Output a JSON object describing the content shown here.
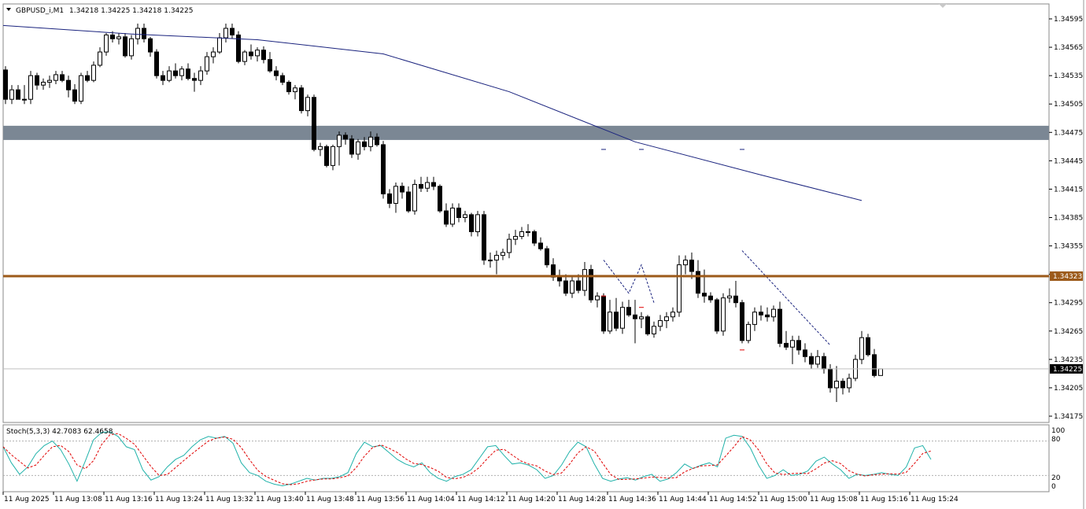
{
  "window": {
    "symbol_label": "GBPUSD_i,M1",
    "ohlc_label": "1.34218 1.34225 1.34218 1.34225"
  },
  "indicator": {
    "label": "Stoch(5,3,3) 42.7083 62.4658",
    "levels": [
      "100",
      "80",
      "20",
      "0"
    ]
  },
  "price_axis": {
    "ticks": [
      "1.34595",
      "1.34565",
      "1.34535",
      "1.34505",
      "1.34475",
      "1.34445",
      "1.34415",
      "1.34385",
      "1.34355",
      "1.34325",
      "1.34295",
      "1.34265",
      "1.34235",
      "1.34205",
      "1.34175"
    ]
  },
  "current_price_tag": "1.34225",
  "level_tag": "1.34323",
  "time_axis": {
    "labels": [
      "11 Aug 2025",
      "11 Aug 13:08",
      "11 Aug 13:16",
      "11 Aug 13:24",
      "11 Aug 13:32",
      "11 Aug 13:40",
      "11 Aug 13:48",
      "11 Aug 13:56",
      "11 Aug 14:04",
      "11 Aug 14:12",
      "11 Aug 14:20",
      "11 Aug 14:28",
      "11 Aug 14:36",
      "11 Aug 14:44",
      "11 Aug 14:52",
      "11 Aug 15:00",
      "11 Aug 15:08",
      "11 Aug 15:16",
      "11 Aug 15:24"
    ]
  },
  "colors": {
    "bullish_body": "#ffffff",
    "bearish_body": "#000000",
    "moving_average": "#1a237e",
    "zone": "#7b8794",
    "horizontal_level": "#9c5a1a",
    "stoch_main": "#20b2aa",
    "stoch_signal": "#e00000"
  },
  "chart_data": {
    "type": "candlestick",
    "symbol": "GBPUSD_i",
    "timeframe": "M1",
    "ylim": [
      1.34165,
      1.34615
    ],
    "horizontal_line": 1.34323,
    "zone": [
      1.34467,
      1.34482
    ],
    "current_price": 1.34225,
    "candles": [
      [
        1.34541,
        1.34545,
        1.34505,
        1.3451
      ],
      [
        1.3451,
        1.34525,
        1.34505,
        1.3452
      ],
      [
        1.3452,
        1.34525,
        1.3451,
        1.3451
      ],
      [
        1.3451,
        1.34525,
        1.34505,
        1.3451
      ],
      [
        1.3451,
        1.3454,
        1.34505,
        1.34535
      ],
      [
        1.34535,
        1.34538,
        1.3452,
        1.34525
      ],
      [
        1.34525,
        1.34532,
        1.3452,
        1.34528
      ],
      [
        1.34528,
        1.34535,
        1.34522,
        1.3453
      ],
      [
        1.3453,
        1.3454,
        1.34526,
        1.34536
      ],
      [
        1.34536,
        1.3454,
        1.34528,
        1.3453
      ],
      [
        1.3453,
        1.34535,
        1.34512,
        1.3452
      ],
      [
        1.3452,
        1.34526,
        1.34505,
        1.34508
      ],
      [
        1.34508,
        1.34538,
        1.34505,
        1.34535
      ],
      [
        1.34535,
        1.3454,
        1.34528,
        1.3453
      ],
      [
        1.3453,
        1.3455,
        1.34528,
        1.34546
      ],
      [
        1.34546,
        1.34565,
        1.34544,
        1.3456
      ],
      [
        1.3456,
        1.3458,
        1.34556,
        1.34578
      ],
      [
        1.34578,
        1.34582,
        1.3457,
        1.34574
      ],
      [
        1.34574,
        1.3458,
        1.34568,
        1.34576
      ],
      [
        1.34576,
        1.3458,
        1.34554,
        1.34556
      ],
      [
        1.34556,
        1.34578,
        1.34552,
        1.34574
      ],
      [
        1.34574,
        1.3459,
        1.34568,
        1.34585
      ],
      [
        1.34585,
        1.3459,
        1.3457,
        1.34574
      ],
      [
        1.34574,
        1.34576,
        1.34555,
        1.3456
      ],
      [
        1.3456,
        1.34563,
        1.34532,
        1.34535
      ],
      [
        1.34535,
        1.3454,
        1.34525,
        1.3453
      ],
      [
        1.3453,
        1.34545,
        1.34528,
        1.3454
      ],
      [
        1.3454,
        1.34548,
        1.34532,
        1.34535
      ],
      [
        1.34535,
        1.34545,
        1.3453,
        1.34542
      ],
      [
        1.34542,
        1.34548,
        1.3453,
        1.34532
      ],
      [
        1.34532,
        1.34538,
        1.34518,
        1.3453
      ],
      [
        1.3453,
        1.34545,
        1.34525,
        1.3454
      ],
      [
        1.3454,
        1.3456,
        1.34536,
        1.34555
      ],
      [
        1.34555,
        1.34565,
        1.34548,
        1.3456
      ],
      [
        1.3456,
        1.3458,
        1.34558,
        1.34575
      ],
      [
        1.34575,
        1.3459,
        1.3457,
        1.34585
      ],
      [
        1.34585,
        1.3459,
        1.34574,
        1.34578
      ],
      [
        1.34578,
        1.34582,
        1.34548,
        1.3455
      ],
      [
        1.3455,
        1.34562,
        1.34546,
        1.3456
      ],
      [
        1.3456,
        1.34568,
        1.34552,
        1.34556
      ],
      [
        1.34556,
        1.34565,
        1.3455,
        1.34562
      ],
      [
        1.34562,
        1.34566,
        1.34548,
        1.34552
      ],
      [
        1.34552,
        1.3456,
        1.34538,
        1.3454
      ],
      [
        1.3454,
        1.34545,
        1.3453,
        1.34535
      ],
      [
        1.34535,
        1.34538,
        1.34525,
        1.34528
      ],
      [
        1.34528,
        1.3453,
        1.34515,
        1.34518
      ],
      [
        1.34518,
        1.34525,
        1.3451,
        1.34522
      ],
      [
        1.34522,
        1.34525,
        1.34495,
        1.34498
      ],
      [
        1.34498,
        1.34515,
        1.34492,
        1.34512
      ],
      [
        1.34512,
        1.34515,
        1.34455,
        1.34457
      ],
      [
        1.34457,
        1.34464,
        1.3445,
        1.3446
      ],
      [
        1.3446,
        1.34462,
        1.34438,
        1.3444
      ],
      [
        1.3444,
        1.34462,
        1.34435,
        1.3446
      ],
      [
        1.3446,
        1.34476,
        1.3444,
        1.34472
      ],
      [
        1.34472,
        1.34475,
        1.34462,
        1.34468
      ],
      [
        1.34468,
        1.34472,
        1.34448,
        1.34452
      ],
      [
        1.34452,
        1.34468,
        1.34446,
        1.34465
      ],
      [
        1.34465,
        1.3447,
        1.34456,
        1.3446
      ],
      [
        1.3446,
        1.34476,
        1.34455,
        1.3447
      ],
      [
        1.3447,
        1.34474,
        1.3446,
        1.34462
      ],
      [
        1.34462,
        1.34466,
        1.34405,
        1.3441
      ],
      [
        1.3441,
        1.34415,
        1.34395,
        1.344
      ],
      [
        1.344,
        1.34422,
        1.3439,
        1.34418
      ],
      [
        1.34418,
        1.34422,
        1.34405,
        1.34412
      ],
      [
        1.34412,
        1.34418,
        1.3439,
        1.34392
      ],
      [
        1.34392,
        1.34425,
        1.34388,
        1.3442
      ],
      [
        1.3442,
        1.34428,
        1.34412,
        1.34416
      ],
      [
        1.34416,
        1.34428,
        1.34412,
        1.34422
      ],
      [
        1.34422,
        1.34428,
        1.34414,
        1.34418
      ],
      [
        1.34418,
        1.3442,
        1.3439,
        1.34392
      ],
      [
        1.34392,
        1.344,
        1.34375,
        1.34378
      ],
      [
        1.34378,
        1.344,
        1.34375,
        1.34395
      ],
      [
        1.34395,
        1.344,
        1.3438,
        1.34385
      ],
      [
        1.34385,
        1.34392,
        1.3438,
        1.34388
      ],
      [
        1.34388,
        1.3439,
        1.34365,
        1.3437
      ],
      [
        1.3437,
        1.34392,
        1.34365,
        1.34388
      ],
      [
        1.34388,
        1.34392,
        1.34335,
        1.3434
      ],
      [
        1.3434,
        1.34348,
        1.34332,
        1.3434
      ],
      [
        1.3434,
        1.3435,
        1.34325,
        1.34345
      ],
      [
        1.34345,
        1.34352,
        1.3434,
        1.34348
      ],
      [
        1.34348,
        1.34368,
        1.34342,
        1.34362
      ],
      [
        1.34362,
        1.34372,
        1.34356,
        1.34365
      ],
      [
        1.34365,
        1.34375,
        1.34362,
        1.3437
      ],
      [
        1.3437,
        1.34378,
        1.34365,
        1.3437
      ],
      [
        1.3437,
        1.34372,
        1.34355,
        1.34358
      ],
      [
        1.34358,
        1.34364,
        1.3435,
        1.34352
      ],
      [
        1.34352,
        1.34355,
        1.34332,
        1.34335
      ],
      [
        1.34335,
        1.34342,
        1.34318,
        1.34322
      ],
      [
        1.34322,
        1.3433,
        1.34312,
        1.34318
      ],
      [
        1.34318,
        1.34325,
        1.34302,
        1.34305
      ],
      [
        1.34305,
        1.34322,
        1.343,
        1.34318
      ],
      [
        1.34318,
        1.34325,
        1.34305,
        1.34308
      ],
      [
        1.34308,
        1.34338,
        1.34302,
        1.3433
      ],
      [
        1.3433,
        1.34335,
        1.34295,
        1.34298
      ],
      [
        1.34298,
        1.34306,
        1.3429,
        1.34302
      ],
      [
        1.34302,
        1.34305,
        1.34262,
        1.34265
      ],
      [
        1.34265,
        1.34298,
        1.34262,
        1.34285
      ],
      [
        1.34285,
        1.343,
        1.34265,
        1.34268
      ],
      [
        1.34268,
        1.34296,
        1.34262,
        1.3429
      ],
      [
        1.3429,
        1.34298,
        1.3428,
        1.34282
      ],
      [
        1.34282,
        1.34298,
        1.34252,
        1.34278
      ],
      [
        1.34278,
        1.34285,
        1.34268,
        1.3428
      ],
      [
        1.3428,
        1.34282,
        1.3426,
        1.34262
      ],
      [
        1.34262,
        1.34275,
        1.34258,
        1.3427
      ],
      [
        1.3427,
        1.34282,
        1.34265,
        1.34276
      ],
      [
        1.34276,
        1.34285,
        1.34268,
        1.3428
      ],
      [
        1.3428,
        1.3429,
        1.34275,
        1.34285
      ],
      [
        1.34285,
        1.34345,
        1.3428,
        1.34335
      ],
      [
        1.34335,
        1.34345,
        1.34325,
        1.3434
      ],
      [
        1.3434,
        1.34348,
        1.3432,
        1.34328
      ],
      [
        1.34328,
        1.3434,
        1.343,
        1.34305
      ],
      [
        1.34305,
        1.3433,
        1.34295,
        1.34302
      ],
      [
        1.34302,
        1.34306,
        1.34295,
        1.34298
      ],
      [
        1.34298,
        1.343,
        1.34262,
        1.34265
      ],
      [
        1.34265,
        1.34305,
        1.3426,
        1.343
      ],
      [
        1.343,
        1.3431,
        1.34295,
        1.34302
      ],
      [
        1.34302,
        1.34318,
        1.3429,
        1.34295
      ],
      [
        1.34295,
        1.34298,
        1.34252,
        1.34255
      ],
      [
        1.34255,
        1.34275,
        1.34252,
        1.34272
      ],
      [
        1.34272,
        1.3429,
        1.34265,
        1.34285
      ],
      [
        1.34285,
        1.34292,
        1.34276,
        1.34282
      ],
      [
        1.34282,
        1.3429,
        1.34275,
        1.3428
      ],
      [
        1.3428,
        1.34292,
        1.34275,
        1.34288
      ],
      [
        1.34288,
        1.34296,
        1.34248,
        1.34252
      ],
      [
        1.34252,
        1.34265,
        1.34245,
        1.34248
      ],
      [
        1.34248,
        1.3426,
        1.3423,
        1.34255
      ],
      [
        1.34255,
        1.3426,
        1.3424,
        1.34245
      ],
      [
        1.34245,
        1.34252,
        1.34232,
        1.34238
      ],
      [
        1.34238,
        1.34242,
        1.34225,
        1.3423
      ],
      [
        1.3423,
        1.34245,
        1.34226,
        1.34238
      ],
      [
        1.34238,
        1.34242,
        1.3422,
        1.34225
      ],
      [
        1.34225,
        1.3423,
        1.342,
        1.34205
      ],
      [
        1.34205,
        1.34228,
        1.3419,
        1.34212
      ],
      [
        1.34212,
        1.34215,
        1.34198,
        1.34205
      ],
      [
        1.34205,
        1.3422,
        1.342,
        1.34215
      ],
      [
        1.34215,
        1.3424,
        1.34212,
        1.34235
      ],
      [
        1.34235,
        1.34265,
        1.3423,
        1.34258
      ],
      [
        1.34258,
        1.34262,
        1.34238,
        1.3424
      ],
      [
        1.3424,
        1.34246,
        1.34216,
        1.34218
      ],
      [
        1.34218,
        1.34225,
        1.34218,
        1.34225
      ]
    ],
    "moving_average": [
      [
        0,
        1.34588
      ],
      [
        20,
        1.34579
      ],
      [
        40,
        1.34573
      ],
      [
        60,
        1.34558
      ],
      [
        80,
        1.34518
      ],
      [
        100,
        1.34465
      ],
      [
        120,
        1.3443
      ],
      [
        136,
        1.34403
      ]
    ],
    "stochastic": {
      "main": [
        70,
        42,
        22,
        35,
        58,
        72,
        80,
        65,
        40,
        10,
        45,
        82,
        95,
        96,
        88,
        70,
        65,
        30,
        12,
        18,
        35,
        48,
        55,
        70,
        82,
        88,
        85,
        88,
        76,
        42,
        25,
        20,
        10,
        5,
        2,
        5,
        10,
        15,
        12,
        15,
        15,
        18,
        25,
        58,
        78,
        70,
        72,
        60,
        48,
        40,
        35,
        42,
        25,
        15,
        10,
        18,
        22,
        30,
        50,
        70,
        72,
        55,
        40,
        42,
        38,
        30,
        15,
        20,
        38,
        62,
        78,
        70,
        40,
        15,
        10,
        14,
        16,
        12,
        18,
        22,
        10,
        14,
        25,
        40,
        32,
        38,
        42,
        35,
        85,
        90,
        88,
        68,
        38,
        15,
        20,
        30,
        20,
        22,
        28,
        45,
        52,
        40,
        30,
        15,
        22,
        20,
        22,
        25,
        22,
        20,
        35,
        68,
        72,
        48
      ]
    },
    "xlabel": "",
    "ylabel": ""
  }
}
